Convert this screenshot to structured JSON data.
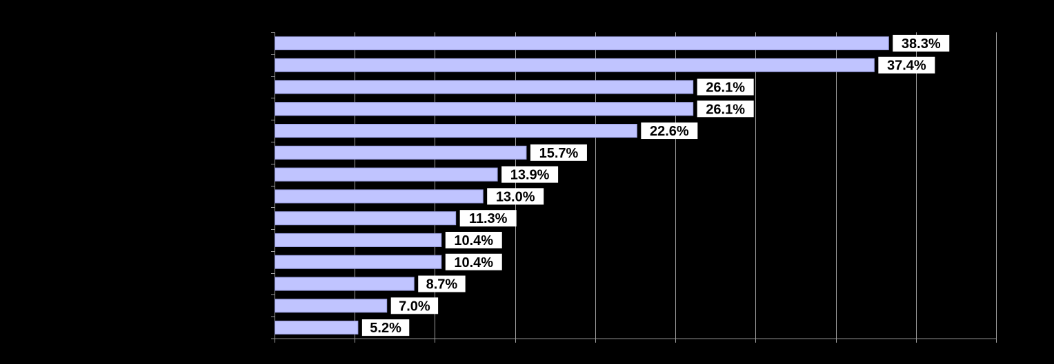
{
  "chart_data": {
    "type": "bar",
    "orientation": "horizontal",
    "categories": [
      "",
      "",
      "",
      "",
      "",
      "",
      "",
      "",
      "",
      "",
      "",
      "",
      "",
      ""
    ],
    "values": [
      38.3,
      37.4,
      26.1,
      26.1,
      22.6,
      15.7,
      13.9,
      13.0,
      11.3,
      10.4,
      10.4,
      8.7,
      7.0,
      5.2
    ],
    "data_labels": [
      "38.3%",
      "37.4%",
      "26.1%",
      "26.1%",
      "22.6%",
      "15.7%",
      "13.9%",
      "13.0%",
      "11.3%",
      "10.4%",
      "10.4%",
      "8.7%",
      "7.0%",
      "5.2%"
    ],
    "title": "",
    "xlabel": "",
    "ylabel": "",
    "xlim": [
      0,
      45
    ],
    "x_gridline_step": 5,
    "grid": true,
    "legend": "none",
    "colors": {
      "background": "#000000",
      "bar_fill": "#C0C4FF",
      "bar_stroke": "#9A9EE0",
      "gridline": "#A0A0A0",
      "axis": "#A0A0A0",
      "label_bg": "#FFFFFF",
      "label_text": "#000000"
    }
  }
}
